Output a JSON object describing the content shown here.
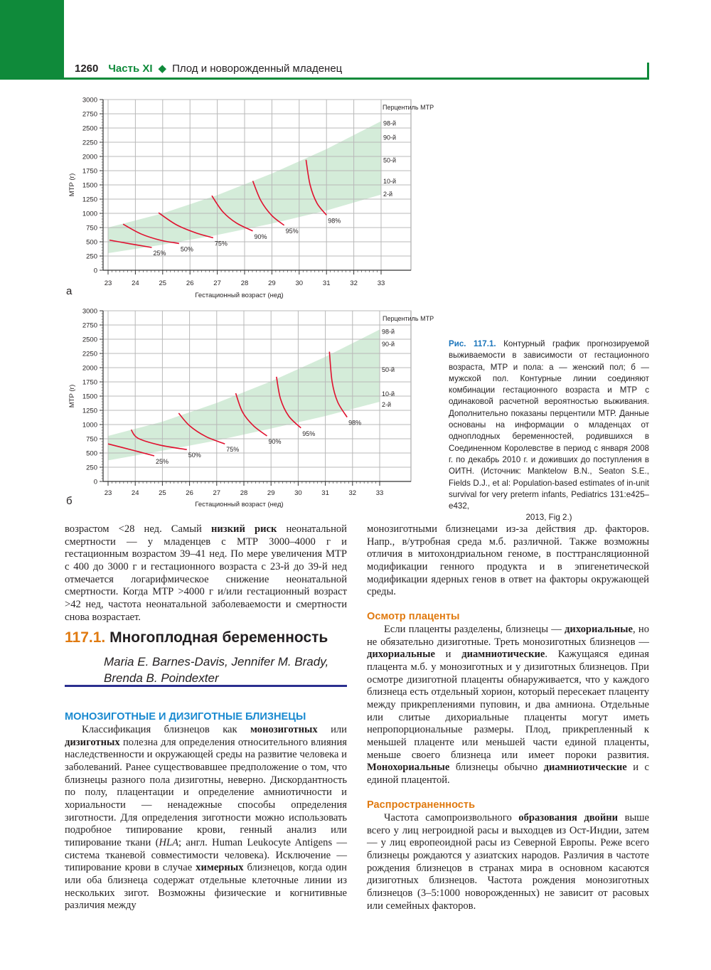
{
  "header": {
    "page_number": "1260",
    "part": "Часть XI",
    "separator_icon": "diamond-icon",
    "title": "Плод и новорожденный младенец",
    "accent_color": "#0f8a3a"
  },
  "chart_data": [
    {
      "type": "line",
      "panel_label": "а",
      "xlabel": "Гестационный возраст (нед)",
      "ylabel": "МТР (г)",
      "xlim": [
        23,
        33
      ],
      "ylim": [
        0,
        3000
      ],
      "x_ticks": [
        "23",
        "24",
        "25",
        "26",
        "27",
        "28",
        "29",
        "30",
        "31",
        "32",
        "33"
      ],
      "y_ticks": [
        "0",
        "250",
        "500",
        "750",
        "1000",
        "1250",
        "1500",
        "1750",
        "2000",
        "2250",
        "2500",
        "2750",
        "3000"
      ],
      "grid": true,
      "percentile_title": "Перцентиль МТР",
      "percentile_labels": [
        "98-й",
        "90-й",
        "50-й",
        "10-й",
        "2-й"
      ],
      "band": {
        "color": "#d4ecd9",
        "x": [
          23,
          25,
          27,
          29,
          31,
          33
        ],
        "lower": [
          300,
          450,
          620,
          820,
          1050,
          1330
        ],
        "upper": [
          750,
          1000,
          1320,
          1700,
          2130,
          2620
        ]
      },
      "curve_color": "#e0102e",
      "series": [
        {
          "name": "25%",
          "x": [
            23.05,
            23.8,
            24.6
          ],
          "y": [
            530,
            465,
            400
          ]
        },
        {
          "name": "50%",
          "x": [
            23.55,
            24.2,
            24.9,
            25.6
          ],
          "y": [
            810,
            640,
            530,
            470
          ]
        },
        {
          "name": "75%",
          "x": [
            24.85,
            25.5,
            26.2,
            26.85
          ],
          "y": [
            1010,
            800,
            660,
            570
          ]
        },
        {
          "name": "90%",
          "x": [
            26.8,
            27.2,
            27.7,
            28.3
          ],
          "y": [
            1310,
            1030,
            830,
            690
          ]
        },
        {
          "name": "95%",
          "x": [
            28.3,
            28.6,
            29.0,
            29.45
          ],
          "y": [
            1570,
            1220,
            960,
            790
          ]
        },
        {
          "name": "98%",
          "x": [
            30.25,
            30.4,
            30.65,
            31.0
          ],
          "y": [
            1940,
            1500,
            1180,
            970
          ]
        }
      ]
    },
    {
      "type": "line",
      "panel_label": "б",
      "xlabel": "Гестационный возраст (нед)",
      "ylabel": "МТР (г)",
      "xlim": [
        23,
        33
      ],
      "ylim": [
        0,
        3000
      ],
      "x_ticks": [
        "23",
        "24",
        "25",
        "26",
        "27",
        "28",
        "29",
        "30",
        "31",
        "32",
        "33"
      ],
      "y_ticks": [
        "0",
        "250",
        "500",
        "750",
        "1000",
        "1250",
        "1500",
        "1750",
        "2000",
        "2250",
        "2500",
        "2750",
        "3000"
      ],
      "grid": true,
      "percentile_title": "Перцентиль МТР",
      "percentile_labels": [
        "98-й",
        "90-й",
        "50-й",
        "10-й",
        "2-й"
      ],
      "band": {
        "color": "#d4ecd9",
        "x": [
          23,
          25,
          27,
          29,
          31,
          33
        ],
        "lower": [
          370,
          540,
          720,
          930,
          1150,
          1400
        ],
        "upper": [
          800,
          1050,
          1380,
          1760,
          2190,
          2670
        ]
      },
      "curve_color": "#e0102e",
      "series": [
        {
          "name": "25%",
          "x": [
            23.0,
            23.9,
            24.7
          ],
          "y": [
            660,
            550,
            450
          ]
        },
        {
          "name": "50%",
          "x": [
            23.85,
            24.1,
            24.9,
            25.9
          ],
          "y": [
            910,
            760,
            640,
            560
          ]
        },
        {
          "name": "75%",
          "x": [
            25.6,
            26.0,
            26.6,
            27.3
          ],
          "y": [
            1200,
            980,
            790,
            660
          ]
        },
        {
          "name": "90%",
          "x": [
            27.7,
            27.95,
            28.35,
            28.85
          ],
          "y": [
            1550,
            1220,
            980,
            800
          ]
        },
        {
          "name": "95%",
          "x": [
            29.2,
            29.35,
            29.65,
            30.1
          ],
          "y": [
            1840,
            1450,
            1150,
            940
          ]
        },
        {
          "name": "98%",
          "x": [
            31.15,
            31.25,
            31.45,
            31.8
          ],
          "y": [
            2280,
            1750,
            1400,
            1130
          ]
        }
      ]
    }
  ],
  "caption": {
    "title": "Рис. 117.1.",
    "text": " Контурный график прогнозируемой выживаемости в зависимости от гестационного возраста, МТР и пола: а — женский пол; б — мужской пол. Контурные линии соединяют комбинации гестационного возраста и МТР с одинаковой расчетной вероятностью выживания. Дополнительно показаны перцентили МТР. Данные основаны на информации о младенцах от одноплодных беременностей, родившихся в Соединенном Королевстве в период с января 2008 г. по декабрь 2010 г. и доживших до поступления в ОИТН. (Источник: Manktelow B.N., Seaton S.E., Fields D.J., et al: Population-based estimates of in-unit survival for very preterm infants, Pediatrics 131:e425–e432,",
    "last_line": "2013, Fig 2.)"
  },
  "left_intro": [
    {
      "t": "возрастом <28 нед. Самый "
    },
    {
      "t": "низкий риск",
      "b": true
    },
    {
      "t": " неонатальной смертности — у младенцев с МТР 3000–4000 г и гестационным возрастом 39–41 нед. По мере увеличения МТР с 400 до 3000 г и гестационного возраста с 23-й до 39-й нед отмечается логарифмическое снижение неонатальной смертности. Когда МТР >4000 г и/или гестационный возраст >42 нед, частота неонатальной заболеваемости и смертности снова возрастает."
    }
  ],
  "section": {
    "number": "117.1.",
    "title": "Многоплодная беременность",
    "authors_line1": "Maria E. Barnes-Davis, Jennifer M. Brady,",
    "authors_line2": "Brenda B. Poindexter"
  },
  "twins": {
    "heading": "МОНОЗИГОТНЫЕ И ДИЗИГОТНЫЕ БЛИЗНЕЦЫ",
    "body": [
      {
        "t": "Классификация близнецов как "
      },
      {
        "t": "монозиготных",
        "b": true
      },
      {
        "t": " или "
      },
      {
        "t": "дизиготных",
        "b": true
      },
      {
        "t": " полезна для определения относительного влияния наследственности и окружающей среды на развитие человека и заболеваний. Ранее существовавшее предположение о том, что близнецы разного пола дизиготны, неверно. Дискордантность по полу, плацентации и определение амниотичности и хориальности — ненадежные способы определения зиготности. Для определения зиготности можно использовать подробное типирование крови, генный анализ или типирование ткани ("
      },
      {
        "t": "HLA",
        "i": true
      },
      {
        "t": "; англ. Human Leukocyte Antigens — система тканевой совместимости человека). Исключение — типирование крови в случае "
      },
      {
        "t": "химерных",
        "b": true
      },
      {
        "t": " близнецов, когда один или оба близнеца содержат отдельные клеточные линии из нескольких зигот. Возможны физические и когнитивные различия между"
      }
    ]
  },
  "right_intro": [
    {
      "t": "монозиготными близнецами из-за действия др. факторов. Напр., в/утробная среда м.б. различной. Также возможны отличия в митохондриальном геноме, в посттрансляционной модификации генного продукта и в эпигенетической модификации ядерных генов в ответ на факторы окружающей среды."
    }
  ],
  "placenta": {
    "heading": "Осмотр плаценты",
    "body": [
      {
        "t": "Если плаценты разделены, близнецы — "
      },
      {
        "t": "дихориальные",
        "b": true
      },
      {
        "t": ", но не обязательно дизиготные. Треть монозиготных близнецов — "
      },
      {
        "t": "дихориальные",
        "b": true
      },
      {
        "t": " и "
      },
      {
        "t": "диамниотические",
        "b": true
      },
      {
        "t": ". Кажущаяся единая плацента м.б. у монозиготных и у дизиготных близнецов. При осмотре дизиготной плаценты обнаруживается, что у каждого близнеца есть отдельный хорион, который пересекает плаценту между прикреплениями пуповин, и два амниона. Отдельные или слитые дихориальные плаценты могут иметь непропорциональные размеры. Плод, прикрепленный к меньшей плаценте или меньшей части единой плаценты, меньше своего близнеца или имеет пороки развития. "
      },
      {
        "t": "Монохориальные",
        "b": true
      },
      {
        "t": " близнецы обычно "
      },
      {
        "t": "диамниотические",
        "b": true
      },
      {
        "t": " и с единой плацентой."
      }
    ]
  },
  "prevalence": {
    "heading": "Распространенность",
    "body": [
      {
        "t": "Частота самопроизвольного "
      },
      {
        "t": "образования двойни",
        "b": true
      },
      {
        "t": " выше всего у лиц негроидной расы и выходцев из Ост-Индии, затем — у лиц европеоидной расы из Северной Европы. Реже всего близнецы рождаются у азиатских народов. Различия в частоте рождения близнецов в странах мира в основном касаются дизиготных близнецов. Частота рождения монозиготных близнецов (3–5:1000 новорожденных) не зависит от расовых или семейных факторов."
      }
    ]
  }
}
